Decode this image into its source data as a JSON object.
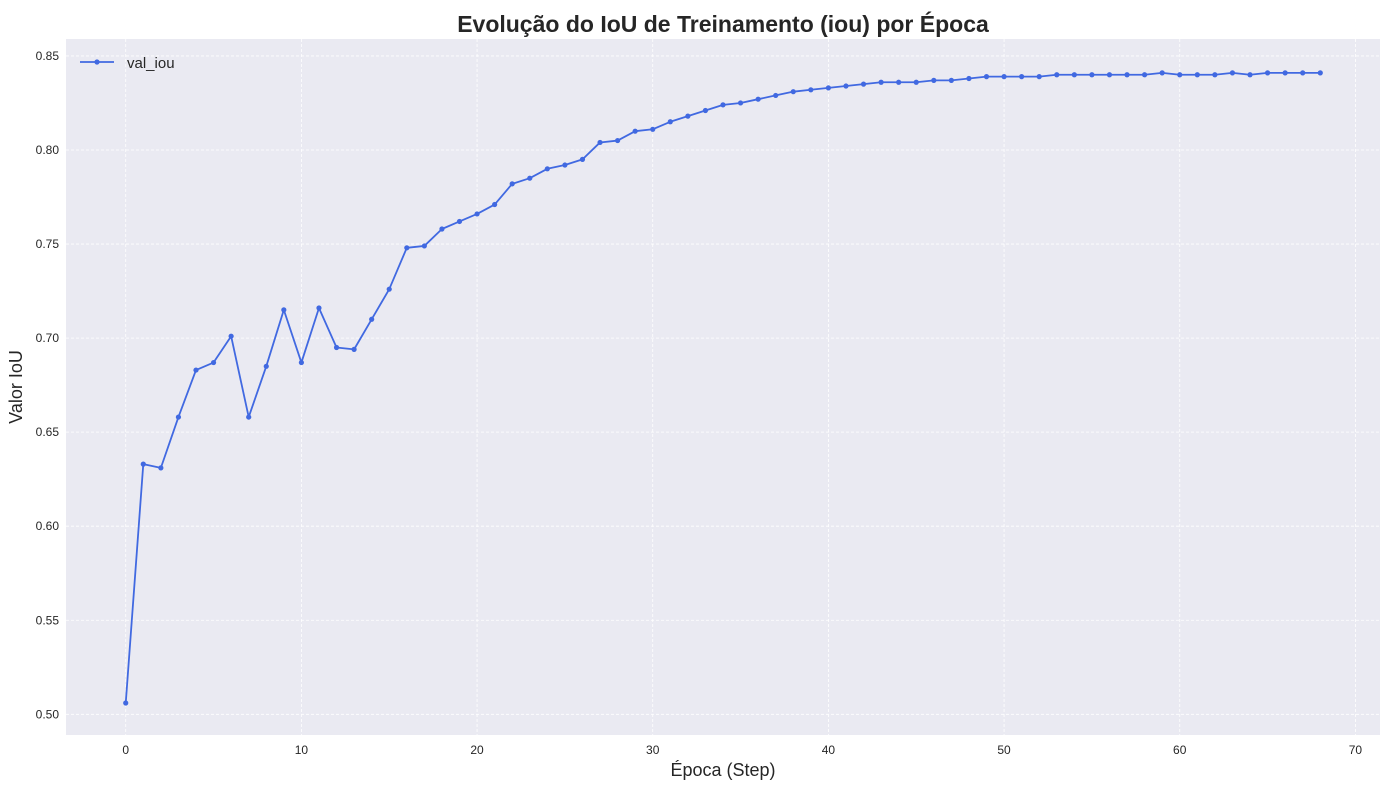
{
  "chart_data": {
    "type": "line",
    "title": "Evolução do IoU de Treinamento (iou) por Época",
    "xlabel": "Época (Step)",
    "ylabel": "Valor IoU",
    "xlim": [
      -3.4,
      71.4
    ],
    "ylim": [
      0.489,
      0.859
    ],
    "xticks": [
      0,
      10,
      20,
      30,
      40,
      50,
      60,
      70
    ],
    "xtick_labels": [
      "0",
      "10",
      "20",
      "30",
      "40",
      "50",
      "60",
      "70"
    ],
    "yticks": [
      0.5,
      0.55,
      0.6,
      0.65,
      0.7,
      0.75,
      0.8,
      0.85
    ],
    "ytick_labels": [
      "0.50",
      "0.55",
      "0.60",
      "0.65",
      "0.70",
      "0.75",
      "0.80",
      "0.85"
    ],
    "grid": true,
    "legend_position": "top-left",
    "colors": {
      "background": "#eaeaf2",
      "grid": "#ffffff",
      "line": "#4169e1"
    },
    "series": [
      {
        "name": "val_iou",
        "x": [
          0,
          1,
          2,
          3,
          4,
          5,
          6,
          7,
          8,
          9,
          10,
          11,
          12,
          13,
          14,
          15,
          16,
          17,
          18,
          19,
          20,
          21,
          22,
          23,
          24,
          25,
          26,
          27,
          28,
          29,
          30,
          31,
          32,
          33,
          34,
          35,
          36,
          37,
          38,
          39,
          40,
          41,
          42,
          43,
          44,
          45,
          46,
          47,
          48,
          49,
          50,
          51,
          52,
          53,
          54,
          55,
          56,
          57,
          58,
          59,
          60,
          61,
          62,
          63,
          64,
          65,
          66,
          67,
          68
        ],
        "values": [
          0.506,
          0.633,
          0.631,
          0.658,
          0.683,
          0.687,
          0.701,
          0.658,
          0.685,
          0.715,
          0.687,
          0.716,
          0.695,
          0.694,
          0.71,
          0.726,
          0.748,
          0.749,
          0.758,
          0.762,
          0.766,
          0.771,
          0.782,
          0.785,
          0.79,
          0.792,
          0.795,
          0.804,
          0.805,
          0.81,
          0.811,
          0.815,
          0.818,
          0.821,
          0.824,
          0.825,
          0.827,
          0.829,
          0.831,
          0.832,
          0.833,
          0.834,
          0.835,
          0.836,
          0.836,
          0.836,
          0.837,
          0.837,
          0.838,
          0.839,
          0.839,
          0.839,
          0.839,
          0.84,
          0.84,
          0.84,
          0.84,
          0.84,
          0.84,
          0.841,
          0.84,
          0.84,
          0.84,
          0.841,
          0.84,
          0.841,
          0.841,
          0.841,
          0.841
        ]
      }
    ]
  }
}
